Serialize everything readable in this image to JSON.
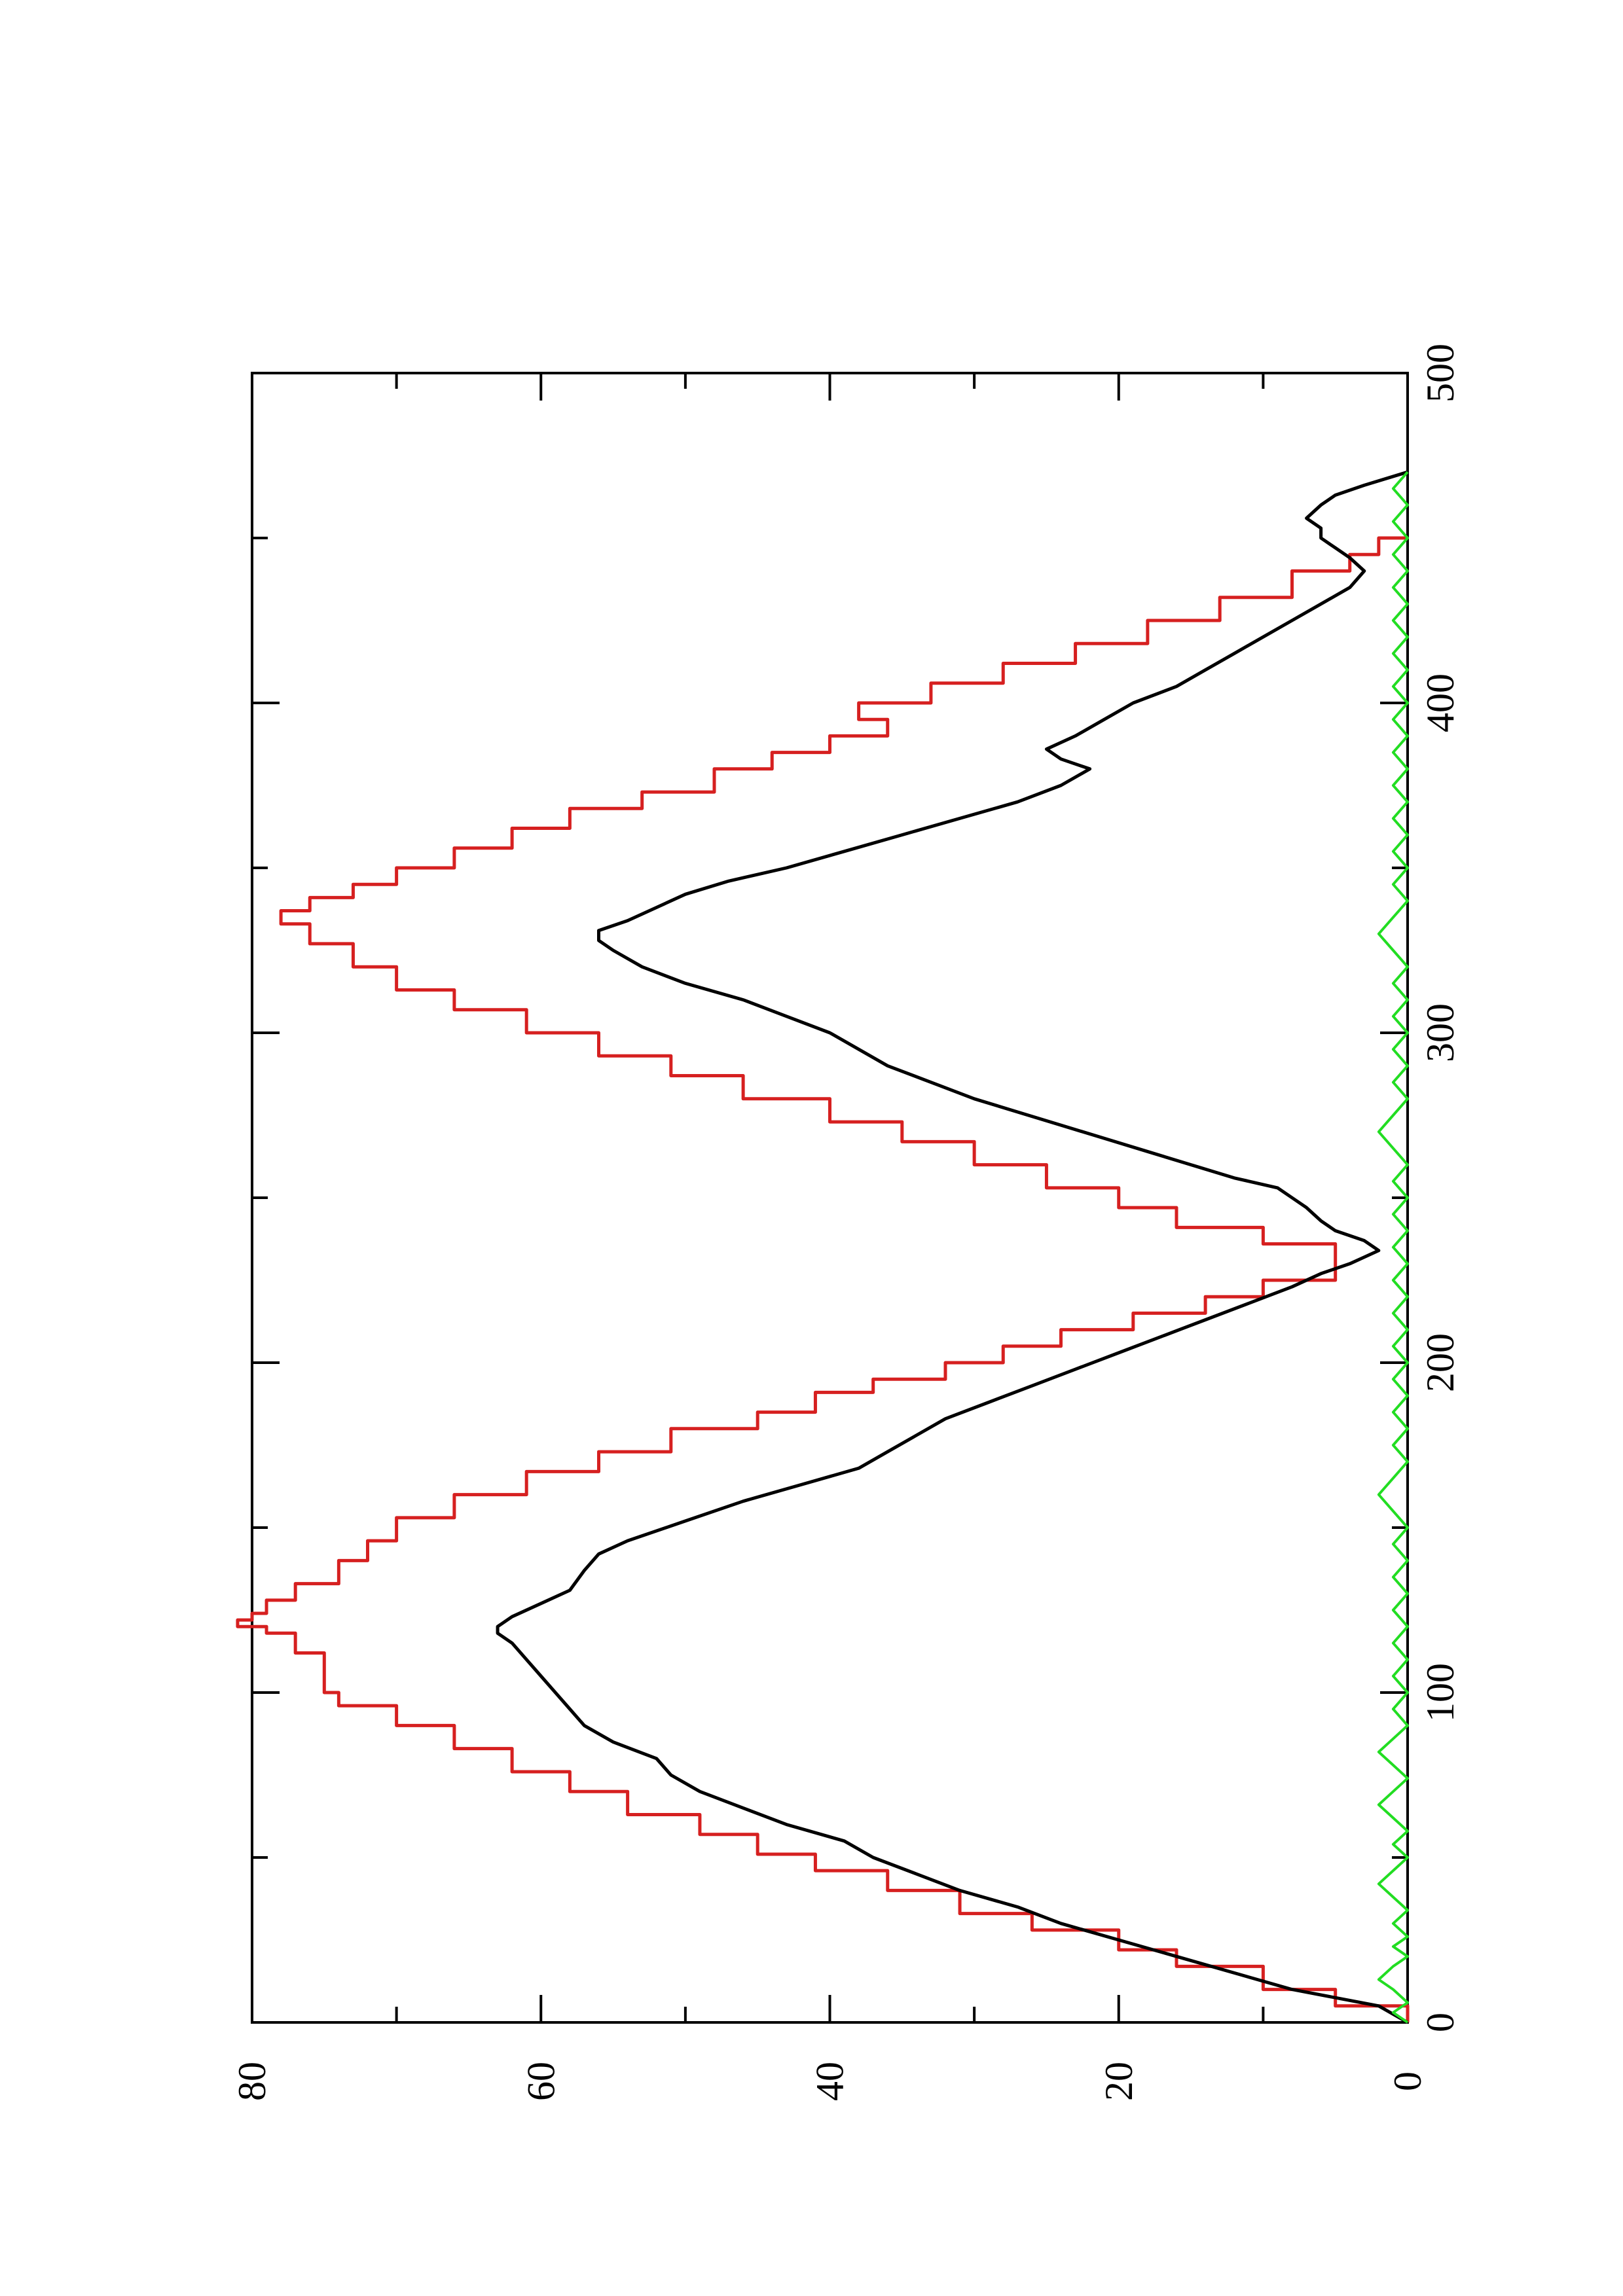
{
  "chart_data": {
    "type": "line",
    "orientation": "rotated-90-ccw",
    "title": "",
    "xlabel": "",
    "ylabel": "",
    "xlim": [
      0,
      500
    ],
    "ylim": [
      0,
      80
    ],
    "x_ticks": [
      0,
      100,
      200,
      300,
      400,
      500
    ],
    "x_minor_ticks": [
      50,
      150,
      250,
      350,
      450
    ],
    "y_ticks": [
      0,
      20,
      40,
      60,
      80
    ],
    "y_minor_ticks": [
      10,
      30,
      50,
      70
    ],
    "x_tick_labels": [
      "0",
      "100",
      "200",
      "300",
      "400",
      "500"
    ],
    "y_tick_labels": [
      "0",
      "20",
      "40",
      "60",
      "80"
    ],
    "grid": false,
    "legend": "none",
    "series": [
      {
        "color": "#d62020",
        "style": "step",
        "points": [
          [
            0,
            0
          ],
          [
            5,
            5
          ],
          [
            10,
            10
          ],
          [
            17,
            16
          ],
          [
            22,
            20
          ],
          [
            28,
            26
          ],
          [
            33,
            31
          ],
          [
            40,
            36
          ],
          [
            46,
            41
          ],
          [
            51,
            45
          ],
          [
            57,
            49
          ],
          [
            63,
            54
          ],
          [
            70,
            58
          ],
          [
            76,
            62
          ],
          [
            83,
            66
          ],
          [
            90,
            70
          ],
          [
            96,
            74
          ],
          [
            100,
            75
          ],
          [
            112,
            77
          ],
          [
            118,
            79
          ],
          [
            120,
            81
          ],
          [
            122,
            80
          ],
          [
            124,
            79
          ],
          [
            128,
            77
          ],
          [
            133,
            74
          ],
          [
            140,
            72
          ],
          [
            146,
            70
          ],
          [
            153,
            66
          ],
          [
            160,
            61
          ],
          [
            167,
            56
          ],
          [
            173,
            51
          ],
          [
            180,
            45
          ],
          [
            185,
            41
          ],
          [
            191,
            37
          ],
          [
            195,
            32
          ],
          [
            200,
            28
          ],
          [
            205,
            24
          ],
          [
            210,
            19
          ],
          [
            215,
            14
          ],
          [
            220,
            10
          ],
          [
            225,
            5
          ],
          [
            230,
            5
          ],
          [
            236,
            10
          ],
          [
            241,
            16
          ],
          [
            247,
            20
          ],
          [
            253,
            25
          ],
          [
            260,
            30
          ],
          [
            267,
            35
          ],
          [
            273,
            40
          ],
          [
            280,
            46
          ],
          [
            287,
            51
          ],
          [
            293,
            56
          ],
          [
            300,
            61
          ],
          [
            307,
            66
          ],
          [
            313,
            70
          ],
          [
            320,
            73
          ],
          [
            327,
            76
          ],
          [
            333,
            78
          ],
          [
            337,
            76
          ],
          [
            341,
            73
          ],
          [
            345,
            70
          ],
          [
            350,
            66
          ],
          [
            356,
            62
          ],
          [
            362,
            58
          ],
          [
            368,
            53
          ],
          [
            373,
            48
          ],
          [
            380,
            44
          ],
          [
            385,
            40
          ],
          [
            390,
            36
          ],
          [
            395,
            38
          ],
          [
            400,
            33
          ],
          [
            406,
            28
          ],
          [
            412,
            23
          ],
          [
            418,
            18
          ],
          [
            425,
            13
          ],
          [
            432,
            8
          ],
          [
            440,
            4
          ],
          [
            445,
            2
          ],
          [
            450,
            0
          ]
        ]
      },
      {
        "color": "#000000",
        "style": "line",
        "points": [
          [
            0,
            0
          ],
          [
            5,
            2
          ],
          [
            10,
            8
          ],
          [
            15,
            12
          ],
          [
            20,
            16
          ],
          [
            25,
            20
          ],
          [
            30,
            24
          ],
          [
            35,
            27
          ],
          [
            40,
            31
          ],
          [
            45,
            34
          ],
          [
            50,
            37
          ],
          [
            55,
            39
          ],
          [
            60,
            43
          ],
          [
            65,
            46
          ],
          [
            70,
            49
          ],
          [
            75,
            51
          ],
          [
            80,
            52
          ],
          [
            85,
            55
          ],
          [
            90,
            57
          ],
          [
            95,
            58
          ],
          [
            100,
            59
          ],
          [
            105,
            60
          ],
          [
            110,
            61
          ],
          [
            115,
            62
          ],
          [
            118,
            63
          ],
          [
            120,
            63
          ],
          [
            123,
            62
          ],
          [
            127,
            60
          ],
          [
            131,
            58
          ],
          [
            137,
            57
          ],
          [
            142,
            56
          ],
          [
            146,
            54
          ],
          [
            152,
            50
          ],
          [
            158,
            46
          ],
          [
            163,
            42
          ],
          [
            168,
            38
          ],
          [
            173,
            36
          ],
          [
            178,
            34
          ],
          [
            183,
            32
          ],
          [
            188,
            29
          ],
          [
            193,
            26
          ],
          [
            198,
            23
          ],
          [
            203,
            20
          ],
          [
            208,
            17
          ],
          [
            213,
            14
          ],
          [
            218,
            11
          ],
          [
            223,
            8
          ],
          [
            227,
            6
          ],
          [
            230,
            4
          ],
          [
            232,
            3
          ],
          [
            234,
            2
          ],
          [
            237,
            3
          ],
          [
            240,
            5
          ],
          [
            243,
            6
          ],
          [
            247,
            7
          ],
          [
            250,
            8
          ],
          [
            253,
            9
          ],
          [
            256,
            12
          ],
          [
            260,
            15
          ],
          [
            264,
            18
          ],
          [
            268,
            21
          ],
          [
            272,
            24
          ],
          [
            276,
            27
          ],
          [
            280,
            30
          ],
          [
            285,
            33
          ],
          [
            290,
            36
          ],
          [
            295,
            38
          ],
          [
            300,
            40
          ],
          [
            305,
            43
          ],
          [
            310,
            46
          ],
          [
            315,
            50
          ],
          [
            320,
            53
          ],
          [
            325,
            55
          ],
          [
            328,
            56
          ],
          [
            331,
            56
          ],
          [
            334,
            54
          ],
          [
            338,
            52
          ],
          [
            342,
            50
          ],
          [
            346,
            47
          ],
          [
            350,
            43
          ],
          [
            355,
            39
          ],
          [
            360,
            35
          ],
          [
            365,
            31
          ],
          [
            370,
            27
          ],
          [
            375,
            24
          ],
          [
            380,
            22
          ],
          [
            383,
            24
          ],
          [
            386,
            25
          ],
          [
            390,
            23
          ],
          [
            395,
            21
          ],
          [
            400,
            19
          ],
          [
            405,
            16
          ],
          [
            410,
            14
          ],
          [
            415,
            12
          ],
          [
            420,
            10
          ],
          [
            425,
            8
          ],
          [
            430,
            6
          ],
          [
            435,
            4
          ],
          [
            440,
            3
          ],
          [
            444,
            4
          ],
          [
            447,
            5
          ],
          [
            450,
            6
          ],
          [
            453,
            6
          ],
          [
            456,
            7
          ],
          [
            460,
            6
          ],
          [
            463,
            5
          ],
          [
            466,
            3
          ],
          [
            470,
            0
          ]
        ]
      },
      {
        "color": "#22dd22",
        "style": "line",
        "points": [
          [
            0,
            0
          ],
          [
            3,
            1
          ],
          [
            6,
            0
          ],
          [
            10,
            1
          ],
          [
            13,
            2
          ],
          [
            17,
            1
          ],
          [
            20,
            0
          ],
          [
            23,
            1
          ],
          [
            26,
            0
          ],
          [
            30,
            1
          ],
          [
            34,
            0
          ],
          [
            38,
            1
          ],
          [
            42,
            2
          ],
          [
            46,
            1
          ],
          [
            50,
            0
          ],
          [
            54,
            1
          ],
          [
            58,
            0
          ],
          [
            62,
            1
          ],
          [
            66,
            2
          ],
          [
            70,
            1
          ],
          [
            74,
            0
          ],
          [
            78,
            1
          ],
          [
            82,
            2
          ],
          [
            86,
            1
          ],
          [
            90,
            0
          ],
          [
            95,
            1
          ],
          [
            100,
            0
          ],
          [
            105,
            1
          ],
          [
            110,
            0
          ],
          [
            115,
            1
          ],
          [
            120,
            0
          ],
          [
            125,
            1
          ],
          [
            130,
            0
          ],
          [
            135,
            1
          ],
          [
            140,
            0
          ],
          [
            145,
            1
          ],
          [
            150,
            0
          ],
          [
            155,
            1
          ],
          [
            160,
            2
          ],
          [
            165,
            1
          ],
          [
            170,
            0
          ],
          [
            175,
            1
          ],
          [
            180,
            0
          ],
          [
            185,
            1
          ],
          [
            190,
            0
          ],
          [
            195,
            1
          ],
          [
            200,
            0
          ],
          [
            205,
            1
          ],
          [
            210,
            0
          ],
          [
            215,
            1
          ],
          [
            220,
            0
          ],
          [
            225,
            1
          ],
          [
            230,
            0
          ],
          [
            235,
            1
          ],
          [
            240,
            0
          ],
          [
            245,
            1
          ],
          [
            250,
            0
          ],
          [
            255,
            1
          ],
          [
            260,
            0
          ],
          [
            265,
            1
          ],
          [
            270,
            2
          ],
          [
            275,
            1
          ],
          [
            280,
            0
          ],
          [
            285,
            1
          ],
          [
            290,
            0
          ],
          [
            295,
            1
          ],
          [
            300,
            0
          ],
          [
            305,
            1
          ],
          [
            310,
            0
          ],
          [
            315,
            1
          ],
          [
            320,
            0
          ],
          [
            325,
            1
          ],
          [
            330,
            2
          ],
          [
            335,
            1
          ],
          [
            340,
            0
          ],
          [
            345,
            1
          ],
          [
            350,
            0
          ],
          [
            355,
            1
          ],
          [
            360,
            0
          ],
          [
            365,
            1
          ],
          [
            370,
            0
          ],
          [
            375,
            1
          ],
          [
            380,
            0
          ],
          [
            385,
            1
          ],
          [
            390,
            0
          ],
          [
            395,
            1
          ],
          [
            400,
            0
          ],
          [
            405,
            1
          ],
          [
            410,
            0
          ],
          [
            415,
            1
          ],
          [
            420,
            0
          ],
          [
            425,
            1
          ],
          [
            430,
            0
          ],
          [
            435,
            1
          ],
          [
            440,
            0
          ],
          [
            445,
            1
          ],
          [
            450,
            0
          ],
          [
            455,
            1
          ],
          [
            460,
            0
          ],
          [
            465,
            1
          ],
          [
            470,
            0
          ]
        ]
      }
    ]
  }
}
